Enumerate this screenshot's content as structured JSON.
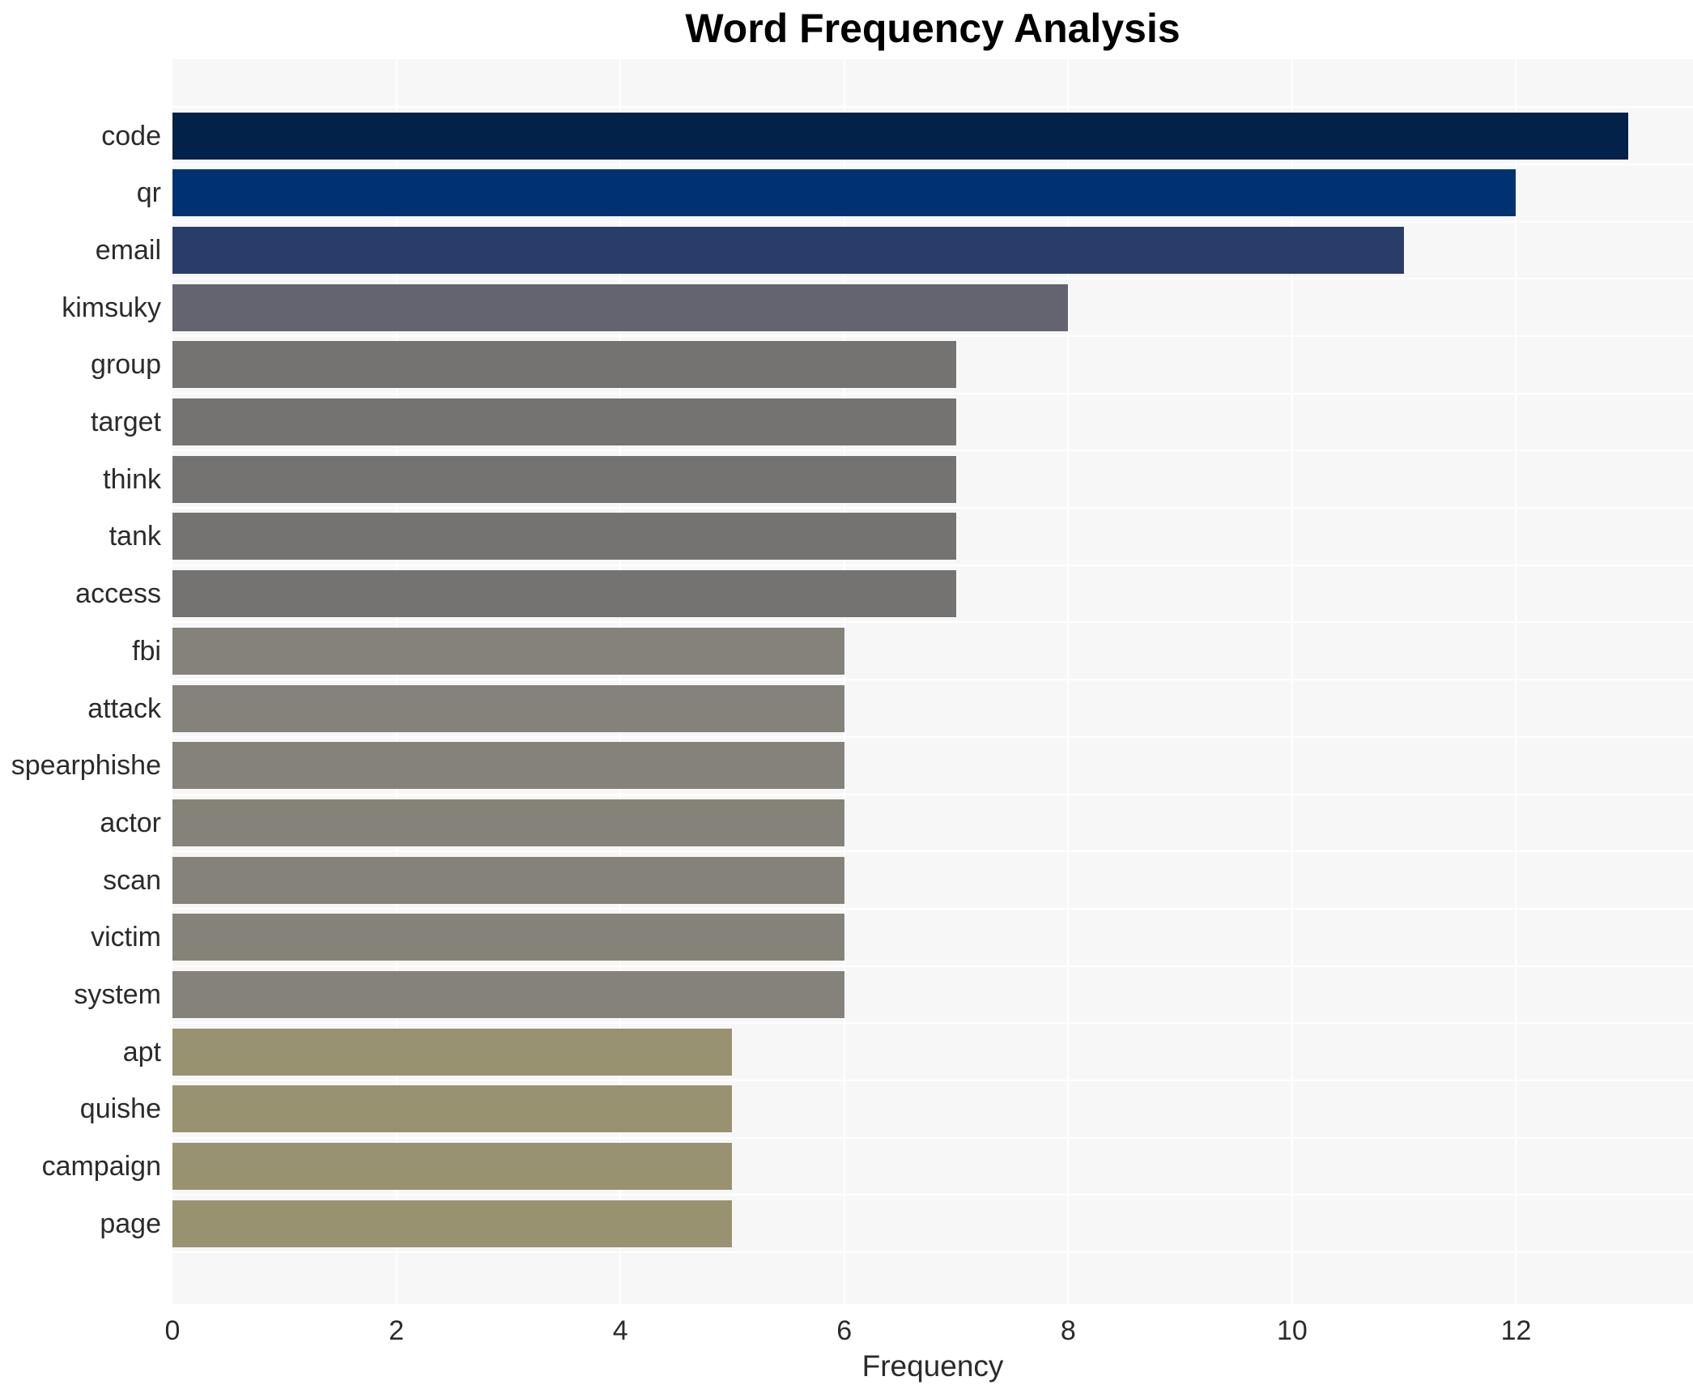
{
  "chart_data": {
    "type": "bar",
    "orientation": "horizontal",
    "title": "Word Frequency Analysis",
    "xlabel": "Frequency",
    "ylabel": "",
    "categories": [
      "code",
      "qr",
      "email",
      "kimsuky",
      "group",
      "target",
      "think",
      "tank",
      "access",
      "fbi",
      "attack",
      "spearphishe",
      "actor",
      "scan",
      "victim",
      "system",
      "apt",
      "quishe",
      "campaign",
      "page"
    ],
    "values": [
      13,
      12,
      11,
      8,
      7,
      7,
      7,
      7,
      7,
      6,
      6,
      6,
      6,
      6,
      6,
      6,
      5,
      5,
      5,
      5
    ],
    "bar_colors": [
      "#03224a",
      "#003271",
      "#293d6b",
      "#63646f",
      "#747372",
      "#747372",
      "#747372",
      "#747372",
      "#747372",
      "#858279",
      "#858279",
      "#858279",
      "#858279",
      "#858279",
      "#858279",
      "#858279",
      "#999270",
      "#999270",
      "#999270",
      "#999270"
    ],
    "xlim": [
      0,
      13.58
    ],
    "xticks": [
      0,
      2,
      4,
      6,
      8,
      10,
      12
    ],
    "legend": "none",
    "grid": {
      "vertical_major_gridlines": true,
      "horizontal_category_separators": true,
      "gridline_color": "#ffffff"
    },
    "panel_bg": "#f7f7f8",
    "figure_bg": "#ffffff",
    "text_color": "#2b2b2b",
    "title_color": "#000000"
  }
}
